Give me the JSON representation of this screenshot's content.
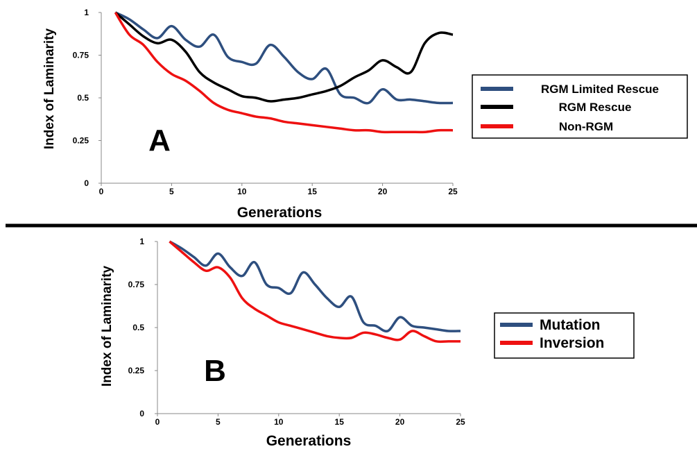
{
  "colors": {
    "blue": "#2e4f7f",
    "black": "#000000",
    "red": "#ee1111",
    "divider": "#000000"
  },
  "chart_data": [
    {
      "type": "line",
      "panel_label": "A",
      "xlabel": "Generations",
      "ylabel": "Index of Laminarity",
      "xlim": [
        0,
        25
      ],
      "ylim": [
        0,
        1
      ],
      "x_ticks": [
        0,
        5,
        10,
        15,
        20,
        25
      ],
      "y_ticks": [
        0,
        0.25,
        0.5,
        0.75,
        1
      ],
      "y_tick_labels": [
        "0",
        "0.25",
        "0.5",
        "0.75",
        "1"
      ],
      "x": [
        1,
        2,
        3,
        4,
        5,
        6,
        7,
        8,
        9,
        10,
        11,
        12,
        13,
        14,
        15,
        16,
        17,
        18,
        19,
        20,
        21,
        22,
        23,
        24,
        25
      ],
      "legend_position": "right",
      "series": [
        {
          "name": "RGM Limited Rescue",
          "color": "#2e4f7f",
          "values": [
            1.0,
            0.96,
            0.9,
            0.85,
            0.92,
            0.84,
            0.8,
            0.87,
            0.74,
            0.71,
            0.7,
            0.81,
            0.74,
            0.65,
            0.61,
            0.67,
            0.52,
            0.5,
            0.47,
            0.55,
            0.49,
            0.49,
            0.48,
            0.47,
            0.47
          ]
        },
        {
          "name": "RGM Rescue",
          "color": "#000000",
          "values": [
            1.0,
            0.93,
            0.86,
            0.82,
            0.84,
            0.77,
            0.65,
            0.59,
            0.55,
            0.51,
            0.5,
            0.48,
            0.49,
            0.5,
            0.52,
            0.54,
            0.57,
            0.62,
            0.66,
            0.72,
            0.68,
            0.65,
            0.82,
            0.88,
            0.87
          ]
        },
        {
          "name": "Non-RGM",
          "color": "#ee1111",
          "values": [
            1.0,
            0.87,
            0.81,
            0.71,
            0.64,
            0.6,
            0.54,
            0.47,
            0.43,
            0.41,
            0.39,
            0.38,
            0.36,
            0.35,
            0.34,
            0.33,
            0.32,
            0.31,
            0.31,
            0.3,
            0.3,
            0.3,
            0.3,
            0.31,
            0.31
          ]
        }
      ]
    },
    {
      "type": "line",
      "panel_label": "B",
      "xlabel": "Generations",
      "ylabel": "Index of Laminarity",
      "xlim": [
        0,
        25
      ],
      "ylim": [
        0,
        1
      ],
      "x_ticks": [
        0,
        5,
        10,
        15,
        20,
        25
      ],
      "y_ticks": [
        0,
        0.25,
        0.5,
        0.75,
        1
      ],
      "y_tick_labels": [
        "0",
        "0.25",
        "0.5",
        "0.75",
        "1"
      ],
      "x": [
        1,
        2,
        3,
        4,
        5,
        6,
        7,
        8,
        9,
        10,
        11,
        12,
        13,
        14,
        15,
        16,
        17,
        18,
        19,
        20,
        21,
        22,
        23,
        24,
        25
      ],
      "legend_position": "right",
      "series": [
        {
          "name": "Mutation",
          "color": "#2e4f7f",
          "values": [
            1.0,
            0.96,
            0.91,
            0.86,
            0.93,
            0.85,
            0.8,
            0.88,
            0.75,
            0.73,
            0.7,
            0.82,
            0.75,
            0.67,
            0.62,
            0.68,
            0.53,
            0.51,
            0.48,
            0.56,
            0.51,
            0.5,
            0.49,
            0.48,
            0.48
          ]
        },
        {
          "name": "Inversion",
          "color": "#ee1111",
          "values": [
            1.0,
            0.94,
            0.88,
            0.83,
            0.85,
            0.79,
            0.67,
            0.61,
            0.57,
            0.53,
            0.51,
            0.49,
            0.47,
            0.45,
            0.44,
            0.44,
            0.47,
            0.46,
            0.44,
            0.43,
            0.48,
            0.45,
            0.42,
            0.42,
            0.42
          ]
        }
      ]
    }
  ]
}
